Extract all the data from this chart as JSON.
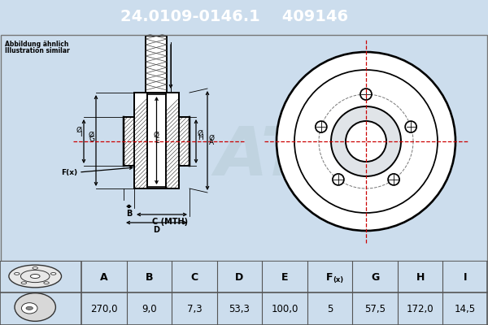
{
  "title_part_number": "24.0109-0146.1",
  "title_ref_number": "409146",
  "header_bg": "#0000cc",
  "header_text_color": "#ffffff",
  "bg_color": "#ccdded",
  "table_bg": "#ffffff",
  "table_header_bg": "#ccdded",
  "border_color": "#000000",
  "note_line1": "Abbildung ähnlich",
  "note_line2": "Illustration similar",
  "dim_labels": [
    "A",
    "B",
    "C",
    "D",
    "E",
    "F(x)",
    "G",
    "H",
    "I"
  ],
  "dim_values": [
    "270,0",
    "9,0",
    "7,3",
    "53,3",
    "100,0",
    "5",
    "57,5",
    "172,0",
    "14,5"
  ],
  "watermark_color": "#b8cdd8"
}
